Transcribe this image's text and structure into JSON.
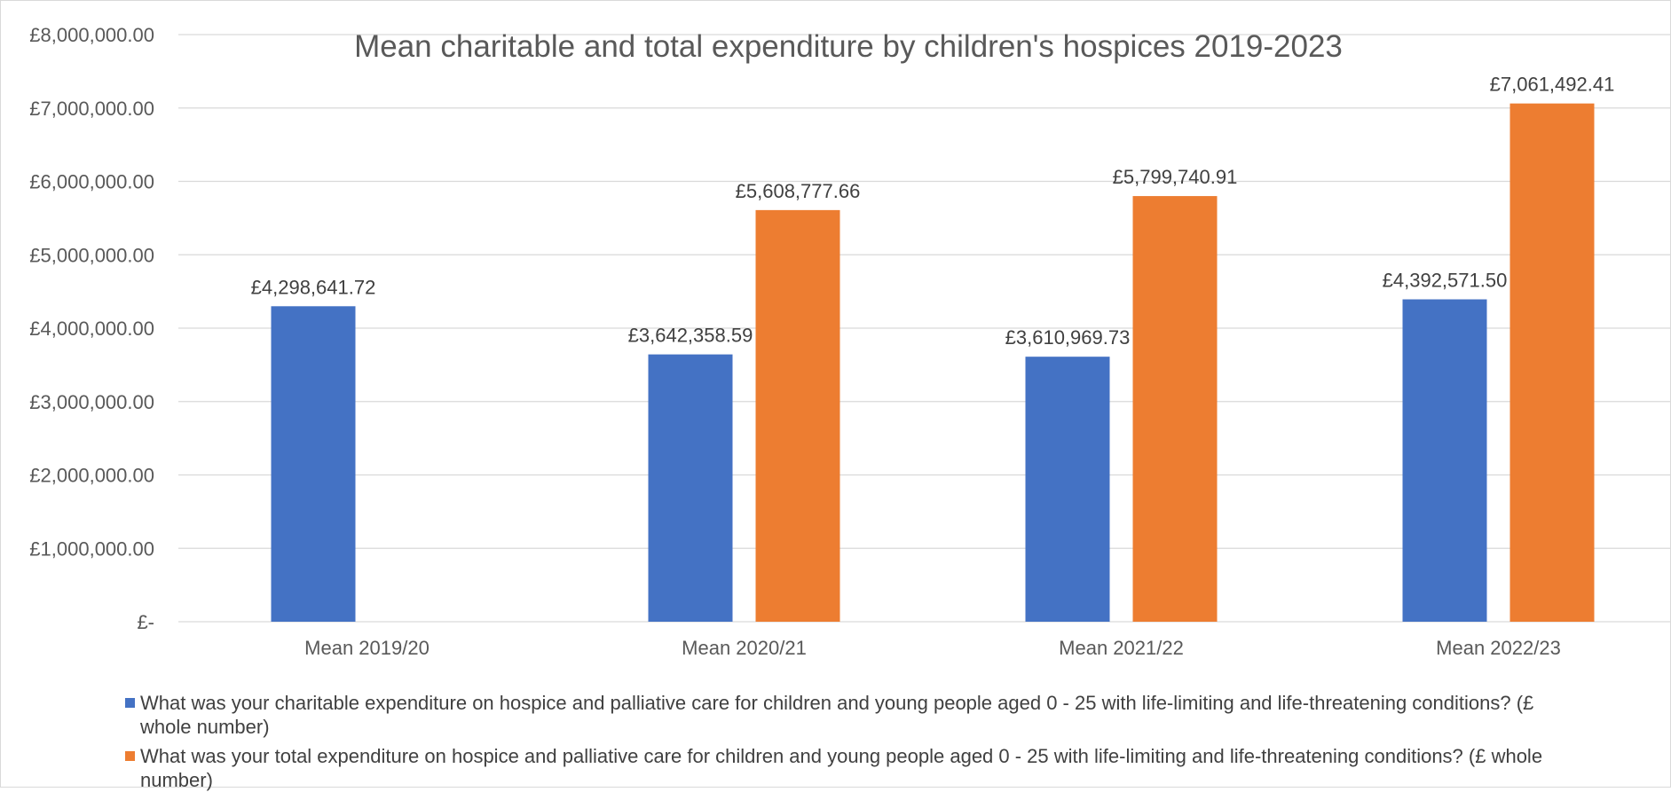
{
  "chart_data": {
    "type": "bar",
    "title": "Mean charitable and total expenditure by children's hospices 2019-2023",
    "xlabel": "",
    "ylabel": "",
    "categories": [
      "Mean 2019/20",
      "Mean 2020/21",
      "Mean 2021/22",
      "Mean 2022/23"
    ],
    "ylim": [
      0,
      8000000
    ],
    "y_ticks": [
      0,
      1000000,
      2000000,
      3000000,
      4000000,
      5000000,
      6000000,
      7000000,
      8000000
    ],
    "y_tick_labels": [
      "£-",
      "£1,000,000.00",
      "£2,000,000.00",
      "£3,000,000.00",
      "£4,000,000.00",
      "£5,000,000.00",
      "£6,000,000.00",
      "£7,000,000.00",
      "£8,000,000.00"
    ],
    "grid": "horizontal",
    "legend_position": "bottom",
    "series": [
      {
        "name": "What was your charitable expenditure on hospice and palliative care for children and young people aged 0 - 25 with life-limiting and life-threatening conditions? (£ whole number)",
        "color": "#4472C4",
        "values": [
          4298641.72,
          3642358.59,
          3610969.73,
          4392571.5
        ],
        "labels": [
          "£4,298,641.72",
          "£3,642,358.59",
          "£3,610,969.73",
          "£4,392,571.50"
        ]
      },
      {
        "name": "What was your total expenditure on hospice and palliative care for children and young people aged 0 - 25 with life-limiting and life-threatening conditions? (£ whole number)",
        "color": "#ED7D31",
        "values": [
          null,
          5608777.66,
          5799740.91,
          7061492.41
        ],
        "labels": [
          "",
          "£5,608,777.66",
          "£5,799,740.91",
          "£7,061,492.41"
        ]
      }
    ]
  },
  "colors": {
    "grid": "#d9d9d9",
    "text": "#595959",
    "label": "#404040"
  }
}
